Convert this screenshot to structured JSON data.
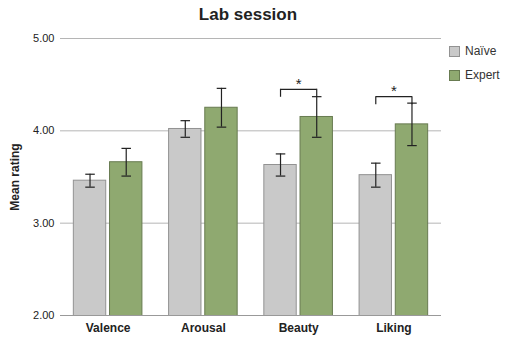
{
  "chart_data": {
    "type": "bar",
    "title": "Lab session",
    "y_label": "Mean rating",
    "categories": [
      "Valence",
      "Arousal",
      "Beauty",
      "Liking"
    ],
    "series": [
      {
        "name": "Naïve",
        "color": "#c9c9c9",
        "values": [
          3.46,
          4.02,
          3.63,
          3.52
        ],
        "errors": [
          0.07,
          0.09,
          0.12,
          0.13
        ]
      },
      {
        "name": "Expert",
        "color": "#8fa970",
        "values": [
          3.66,
          4.25,
          4.15,
          4.07
        ],
        "errors": [
          0.15,
          0.21,
          0.22,
          0.23
        ]
      }
    ],
    "ylim": [
      2,
      5
    ],
    "yticks": [
      {
        "value": 2,
        "label": "2.00"
      },
      {
        "value": 3,
        "label": "3.00"
      },
      {
        "value": 4,
        "label": "4.00"
      },
      {
        "value": 5,
        "label": "5.00"
      }
    ],
    "grid": true,
    "legend": "right",
    "annotations": [
      {
        "category": "Beauty",
        "text": "*",
        "y": 4.45
      },
      {
        "category": "Liking",
        "text": "*",
        "y": 4.37
      }
    ]
  }
}
